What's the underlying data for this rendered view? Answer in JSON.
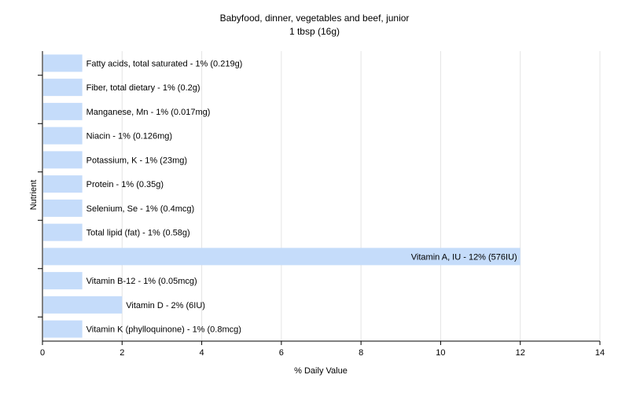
{
  "chart_data": {
    "type": "bar",
    "orientation": "horizontal",
    "title": "Babyfood, dinner, vegetables and beef, junior",
    "subtitle": "1 tbsp (16g)",
    "xlabel": "% Daily Value",
    "ylabel": "Nutrient",
    "xlim": [
      0,
      14
    ],
    "xticks": [
      0,
      2,
      4,
      6,
      8,
      10,
      12,
      14
    ],
    "grid": "vertical",
    "bar_color": "#c5dcfa",
    "categories": [
      "Fatty acids, total saturated",
      "Fiber, total dietary",
      "Manganese, Mn",
      "Niacin",
      "Potassium, K",
      "Protein",
      "Selenium, Se",
      "Total lipid (fat)",
      "Vitamin A, IU",
      "Vitamin B-12",
      "Vitamin D",
      "Vitamin K (phylloquinone)"
    ],
    "values": [
      1,
      1,
      1,
      1,
      1,
      1,
      1,
      1,
      12,
      1,
      2,
      1
    ],
    "labels": [
      "Fatty acids, total saturated - 1% (0.219g)",
      "Fiber, total dietary - 1% (0.2g)",
      "Manganese, Mn - 1% (0.017mg)",
      "Niacin - 1% (0.126mg)",
      "Potassium, K - 1% (23mg)",
      "Protein - 1% (0.35g)",
      "Selenium, Se - 1% (0.4mcg)",
      "Total lipid (fat) - 1% (0.58g)",
      "Vitamin A, IU - 12% (576IU)",
      "Vitamin B-12 - 1% (0.05mcg)",
      "Vitamin D - 2% (6IU)",
      "Vitamin K (phylloquinone) - 1% (0.8mcg)"
    ]
  }
}
